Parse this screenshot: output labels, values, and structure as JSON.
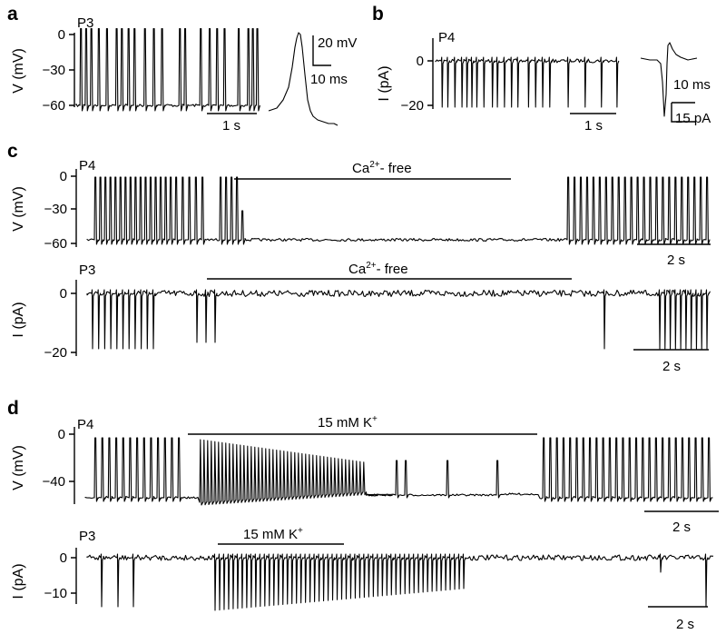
{
  "chart_data": [
    {
      "id": "a",
      "type": "line",
      "panel_label": "a",
      "recording": "P3",
      "ylabel": "V (mV)",
      "y_ticks": [
        "0",
        "−30",
        "−60"
      ],
      "ylim": [
        -70,
        5
      ],
      "scale_bar_x": "1 s",
      "spike_times_s": [
        0.05,
        0.12,
        0.19,
        0.29,
        0.4,
        0.53,
        0.6,
        0.69,
        0.77,
        0.91,
        1.03,
        1.14,
        1.38,
        1.45,
        1.66,
        1.78,
        1.88,
        1.98,
        2.17,
        2.3,
        2.36,
        2.42
      ],
      "baseline_mV": -60,
      "inset": {
        "type": "action_potential",
        "scale_y": "20 mV",
        "scale_x": "10 ms"
      }
    },
    {
      "id": "b",
      "type": "line",
      "panel_label": "b",
      "recording": "P4",
      "ylabel": "I (pA)",
      "y_ticks": [
        "0",
        "−20"
      ],
      "ylim": [
        -25,
        8
      ],
      "scale_bar_x": "1 s",
      "spike_times_s": [
        0.08,
        0.16,
        0.26,
        0.36,
        0.43,
        0.5,
        0.57,
        0.67,
        0.79,
        0.86,
        0.96,
        1.06,
        1.15,
        1.3,
        1.4,
        1.5,
        1.6,
        1.86,
        2.1,
        2.33,
        2.55
      ],
      "inset": {
        "type": "current_spike",
        "scale_x": "10 ms",
        "scale_y": "15 pA"
      }
    },
    {
      "id": "c_voltage",
      "type": "line",
      "panel_label": "c",
      "recording": "P4",
      "ylabel": "V (mV)",
      "y_ticks": [
        "0",
        "−30",
        "−60"
      ],
      "ylim": [
        -70,
        5
      ],
      "condition": "Ca2+- free",
      "scale_bar_x": "2 s"
    },
    {
      "id": "c_current",
      "type": "line",
      "recording": "P3",
      "ylabel": "I (pA)",
      "y_ticks": [
        "0",
        "−20"
      ],
      "ylim": [
        -25,
        8
      ],
      "condition": "Ca2+- free",
      "scale_bar_x": "2 s"
    },
    {
      "id": "d_voltage",
      "type": "line",
      "panel_label": "d",
      "recording": "P4",
      "ylabel": "V (mV)",
      "y_ticks": [
        "0",
        "−40"
      ],
      "ylim": [
        -60,
        5
      ],
      "condition": "15 mM K+",
      "scale_bar_x": "2 s"
    },
    {
      "id": "d_current",
      "type": "line",
      "recording": "P3",
      "ylabel": "I (pA)",
      "y_ticks": [
        "0",
        "−10"
      ],
      "ylim": [
        -16,
        4
      ],
      "condition": "15 mM K+",
      "scale_bar_x": "2 s"
    }
  ]
}
